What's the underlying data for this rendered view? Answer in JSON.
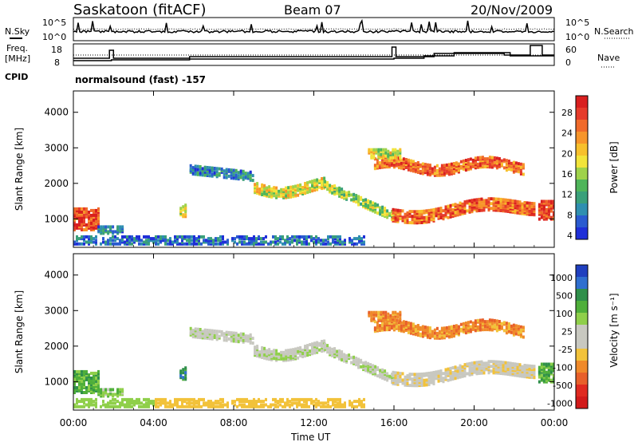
{
  "header": {
    "station": "Saskatoon (fitACF)",
    "beam": "Beam 07",
    "date": "20/Nov/2009"
  },
  "sidepanel": {
    "nsky_label": "N.Sky",
    "nsearch_label": "N.Search",
    "freq_label_1": "Freq.",
    "freq_label_2": "[MHz]",
    "nave_label": "Nave",
    "cpid_label": "CPID",
    "cpid_value": "normalsound (fast) -157"
  },
  "noise_axis": {
    "left_top": "10^5",
    "left_bottom": "10^0",
    "right_top": "10^5",
    "right_bottom": "10^0"
  },
  "freq_axis": {
    "left_top": "18",
    "left_bottom": "8",
    "right_top": "60",
    "right_bottom": "0"
  },
  "colors": {
    "power_scale": [
      "#1f2fd8",
      "#2a5bd0",
      "#2f8fb0",
      "#3aa07a",
      "#4fb55a",
      "#9fd24a",
      "#f2e43a",
      "#f7c02c",
      "#f7952a",
      "#f06a2a",
      "#e63b2a",
      "#d91f1f"
    ],
    "velocity_scale": [
      "#1f3fbf",
      "#2f6fcf",
      "#2f8f4a",
      "#4faf3a",
      "#8fcf4a",
      "#c8c8c0",
      "#c8c8c0",
      "#f2c23a",
      "#f08a2a",
      "#e8602a",
      "#e02a20",
      "#d21a1a"
    ]
  },
  "chart_data": [
    {
      "type": "heatmap",
      "title": "Power",
      "xlabel": "Time UT",
      "ylabel": "Slant Range [km]",
      "x_ticks": [
        "00:00",
        "04:00",
        "08:00",
        "12:00",
        "16:00",
        "20:00",
        "00:00"
      ],
      "y_ticks": [
        1000,
        2000,
        3000,
        4000
      ],
      "ylim": [
        200,
        4600
      ],
      "colorbar": {
        "label": "Power [dB]",
        "ticks": [
          "4",
          "8",
          "12",
          "16",
          "20",
          "24",
          "28"
        ],
        "range": [
          0,
          30
        ]
      }
    },
    {
      "type": "heatmap",
      "title": "Velocity",
      "xlabel": "Time UT",
      "ylabel": "Slant Range [km]",
      "x_ticks": [
        "00:00",
        "04:00",
        "08:00",
        "12:00",
        "16:00",
        "20:00",
        "00:00"
      ],
      "y_ticks": [
        1000,
        2000,
        3000,
        4000
      ],
      "ylim": [
        200,
        4600
      ],
      "colorbar": {
        "label": "Velocity [m s⁻¹]",
        "ticks": [
          "1000",
          "500",
          "100",
          "25",
          "-25",
          "-100",
          "-500",
          "-1000"
        ]
      }
    }
  ]
}
